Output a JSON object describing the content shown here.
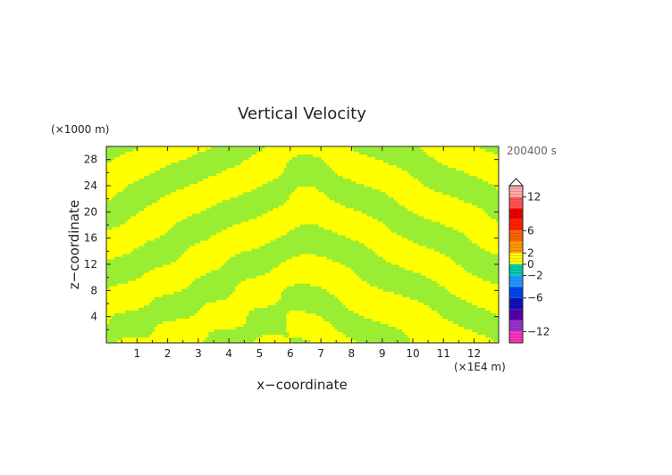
{
  "chart_data": {
    "type": "heatmap",
    "title": "Vertical Velocity",
    "xlabel": "x−coordinate",
    "ylabel": "z−coordinate",
    "x_unit": "(×1E4 m)",
    "y_unit": "(×1000 m)",
    "time_label": "200400 s",
    "xlim": [
      0,
      12.8
    ],
    "ylim": [
      0,
      30
    ],
    "x_ticks": [
      1,
      2,
      3,
      4,
      5,
      6,
      7,
      8,
      9,
      10,
      11,
      12
    ],
    "y_ticks": [
      4,
      8,
      12,
      16,
      20,
      24,
      28
    ],
    "colorbar": {
      "range": [
        -14,
        14
      ],
      "tick_values": [
        12,
        6,
        2,
        0,
        -2,
        -6,
        -12
      ],
      "tick_labels": [
        "12",
        "6",
        "2",
        "0",
        "−2",
        "−6",
        "−12"
      ],
      "levels": [
        {
          "from": -14,
          "to": -12,
          "color": "#ff33bb"
        },
        {
          "from": -12,
          "to": -10,
          "color": "#9933cc"
        },
        {
          "from": -10,
          "to": -8,
          "color": "#5500aa"
        },
        {
          "from": -8,
          "to": -6,
          "color": "#1111bb"
        },
        {
          "from": -6,
          "to": -4,
          "color": "#0044ee"
        },
        {
          "from": -4,
          "to": -2,
          "color": "#2299ff"
        },
        {
          "from": -2,
          "to": 0,
          "color": "#00ccaa"
        },
        {
          "from": 0,
          "to": 2,
          "color": "#ffff00"
        },
        {
          "from": 2,
          "to": 4,
          "color": "#ff9900"
        },
        {
          "from": 4,
          "to": 6,
          "color": "#ff6600"
        },
        {
          "from": 6,
          "to": 8,
          "color": "#ff2200"
        },
        {
          "from": 8,
          "to": 10,
          "color": "#ee0000"
        },
        {
          "from": 10,
          "to": 12,
          "color": "#ff5555"
        },
        {
          "from": 12,
          "to": 14,
          "color": "#ffaaaa"
        }
      ]
    },
    "field_colors": {
      "negative_small": "#99ee33",
      "positive_small": "#ffff00"
    }
  }
}
